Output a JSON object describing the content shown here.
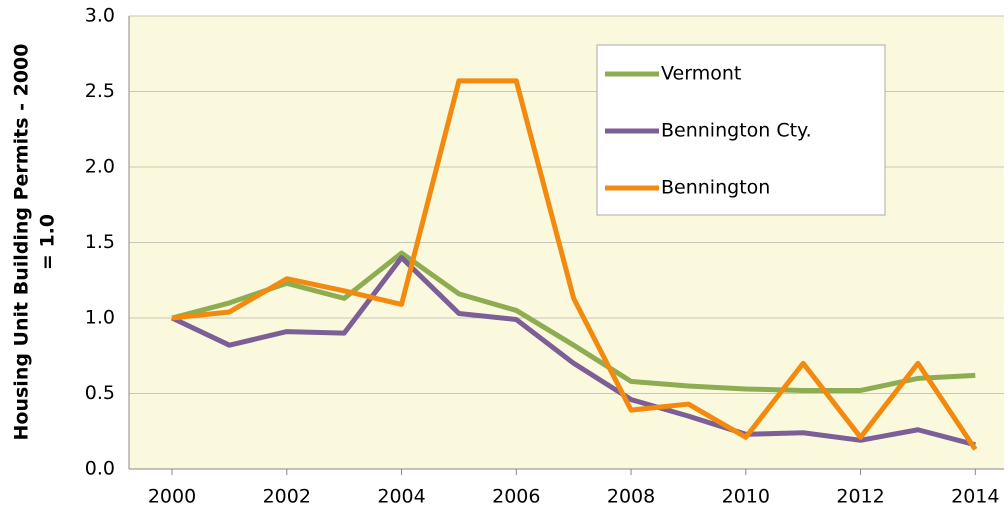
{
  "chart_data": {
    "type": "line",
    "y_label": [
      "Housing Unit Building Permits - 2000",
      "= 1.0"
    ],
    "x": [
      2000,
      2001,
      2002,
      2003,
      2004,
      2005,
      2006,
      2007,
      2008,
      2009,
      2010,
      2011,
      2012,
      2013,
      2014
    ],
    "xlim": [
      1999.25,
      2014.5
    ],
    "xticks": [
      2000,
      2002,
      2004,
      2006,
      2008,
      2010,
      2012,
      2014
    ],
    "ylim": [
      0,
      3
    ],
    "yticks": [
      {
        "value": 0,
        "label": "0.0"
      },
      0.5,
      {
        "value": 1,
        "label": "1.0"
      },
      1.5,
      {
        "value": 2,
        "label": "2.0"
      },
      2.5,
      {
        "value": 3,
        "label": "3.0"
      }
    ],
    "grid": true,
    "legend": "upper right",
    "series": [
      {
        "name": "Vermont",
        "color": "#8eac52",
        "values": [
          1.0,
          1.1,
          1.23,
          1.13,
          1.43,
          1.16,
          1.05,
          0.82,
          0.58,
          0.55,
          0.53,
          0.52,
          0.52,
          0.6,
          0.62
        ]
      },
      {
        "name": "Bennington Cty.",
        "color": "#7b5f96",
        "values": [
          1.0,
          0.82,
          0.91,
          0.9,
          1.4,
          1.03,
          0.99,
          0.7,
          0.46,
          0.35,
          0.23,
          0.24,
          0.19,
          0.26,
          0.16
        ]
      },
      {
        "name": "Bennington",
        "color": "#f28a0f",
        "values": [
          1.0,
          1.04,
          1.26,
          1.18,
          1.09,
          2.57,
          2.57,
          1.13,
          0.39,
          0.43,
          0.21,
          0.7,
          0.21,
          0.7,
          0.13
        ]
      }
    ]
  }
}
